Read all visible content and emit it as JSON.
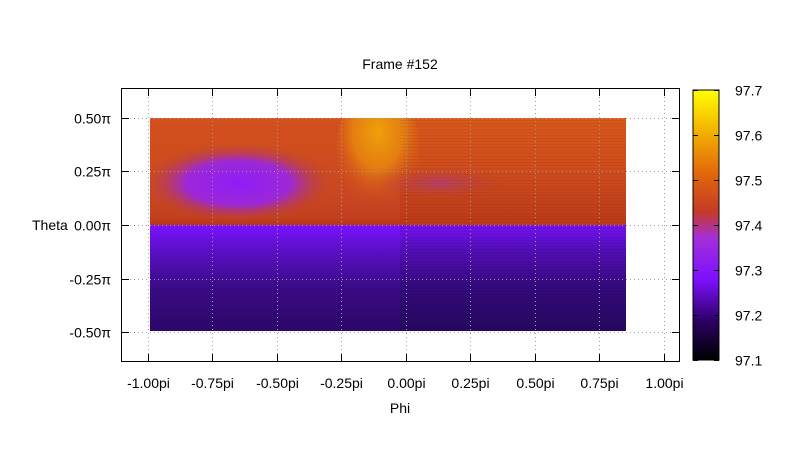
{
  "chart_data": {
    "type": "heatmap",
    "title": "Frame #152",
    "xlabel": "Phi",
    "ylabel": "Theta",
    "xlim": [
      -1.1,
      1.06
    ],
    "ylim": [
      -0.635,
      0.635
    ],
    "x_ticks": [
      -1.0,
      -0.75,
      -0.5,
      -0.25,
      0.0,
      0.25,
      0.5,
      0.75,
      1.0
    ],
    "x_tick_labels": [
      "-1.00pi",
      "-0.75pi",
      "-0.50pi",
      "-0.25pi",
      "0.00pi",
      "0.25pi",
      "0.50pi",
      "0.75pi",
      "1.00pi"
    ],
    "y_ticks": [
      0.5,
      0.25,
      0.0,
      -0.25,
      -0.5
    ],
    "y_tick_labels": [
      "0.50π",
      "0.25π",
      "0.00π",
      "-0.25π",
      "-0.50π"
    ],
    "grid": true,
    "data_extent": {
      "phi": [
        -1.0,
        0.9
      ],
      "theta": [
        -0.5,
        0.5
      ]
    },
    "colorbar": {
      "range": [
        97.1,
        97.7
      ],
      "ticks": [
        97.7,
        97.6,
        97.5,
        97.4,
        97.3,
        97.2,
        97.1
      ],
      "tick_labels": [
        "97.7",
        "97.6",
        "97.5",
        "97.4",
        "97.3",
        "97.2",
        "97.1"
      ],
      "palette": [
        "#000000",
        "#2a0060",
        "#7d10ff",
        "#a42fd9",
        "#c53a25",
        "#e36b0a",
        "#f5b800",
        "#ffff00"
      ]
    },
    "regions": [
      {
        "phi": [
          -1.0,
          0.0
        ],
        "theta": [
          0.0,
          0.5
        ],
        "value": 97.46
      },
      {
        "phi": [
          0.0,
          0.9
        ],
        "theta": [
          0.0,
          0.5
        ],
        "value": 97.44
      },
      {
        "phi": [
          -1.0,
          0.9
        ],
        "theta": [
          -0.5,
          0.0
        ],
        "value": 97.2
      }
    ],
    "features": [
      {
        "kind": "low",
        "phi": -0.7,
        "theta": 0.19,
        "value": 97.29
      },
      {
        "kind": "high",
        "phi": -0.05,
        "theta": 0.38,
        "value": 97.58
      },
      {
        "kind": "low",
        "phi": 0.2,
        "theta": 0.2,
        "value": 97.36
      }
    ]
  }
}
